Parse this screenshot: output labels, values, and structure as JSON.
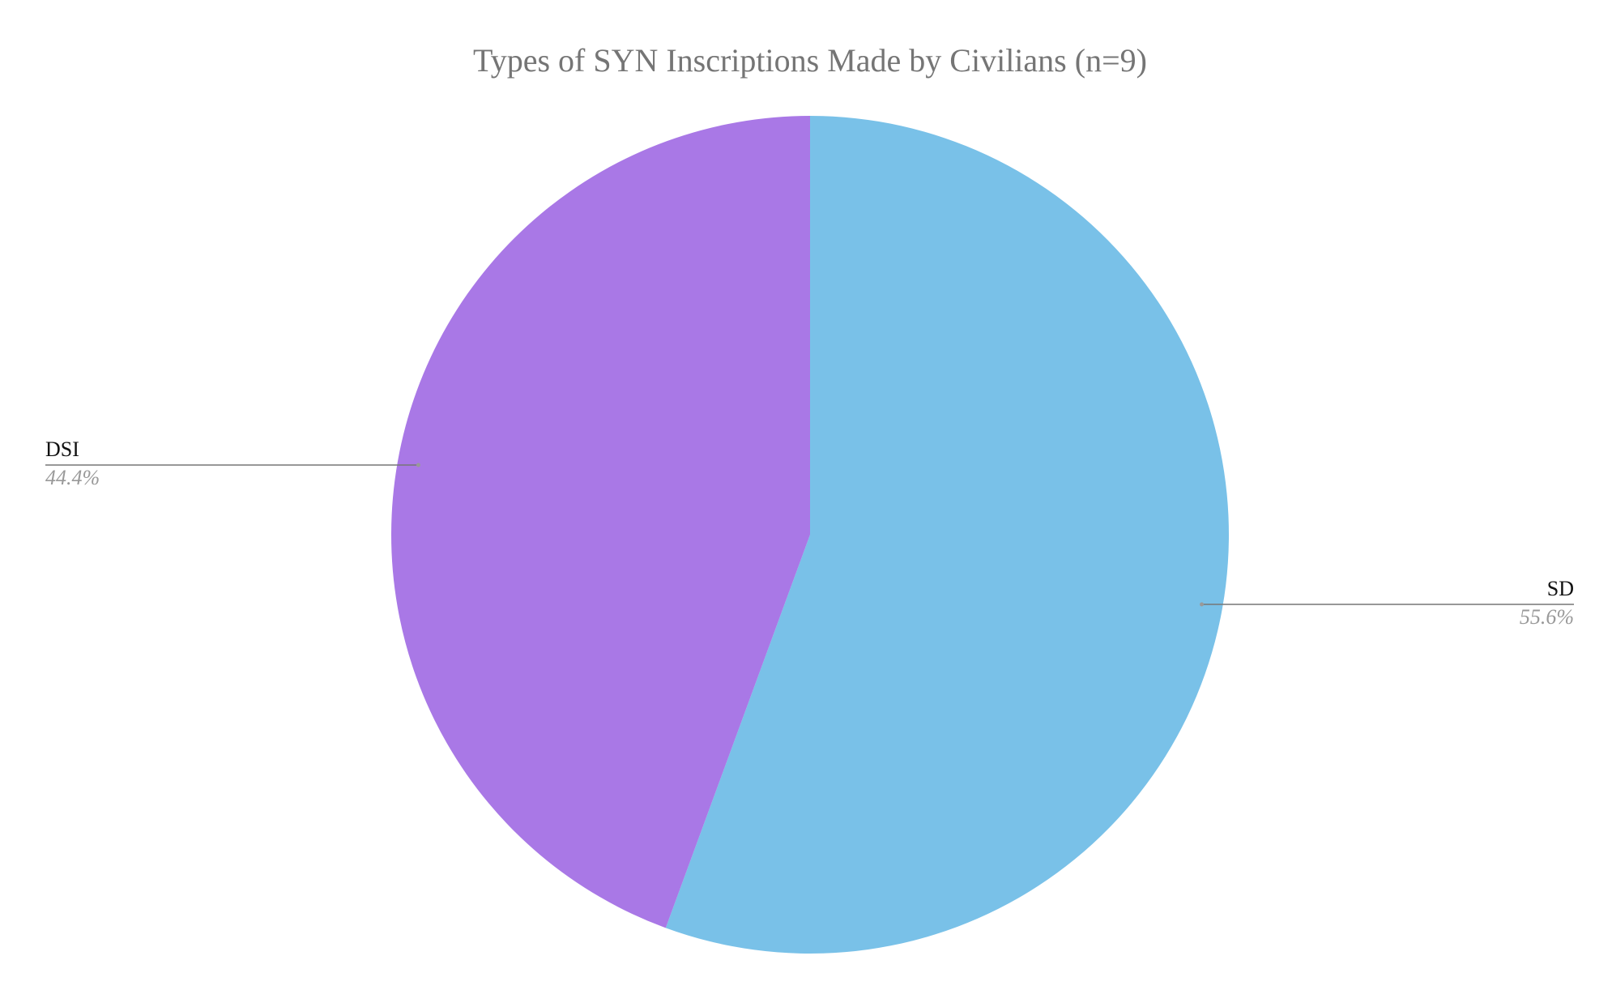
{
  "chart_data": {
    "type": "pie",
    "title": "Types of SYN Inscriptions Made by Civilians (n=9)",
    "categories": [
      "SD",
      "DSI"
    ],
    "values": [
      55.6,
      44.4
    ],
    "value_labels": [
      "55.6%",
      "44.4%"
    ],
    "colors": [
      "#79c1e8",
      "#a978e6"
    ]
  }
}
